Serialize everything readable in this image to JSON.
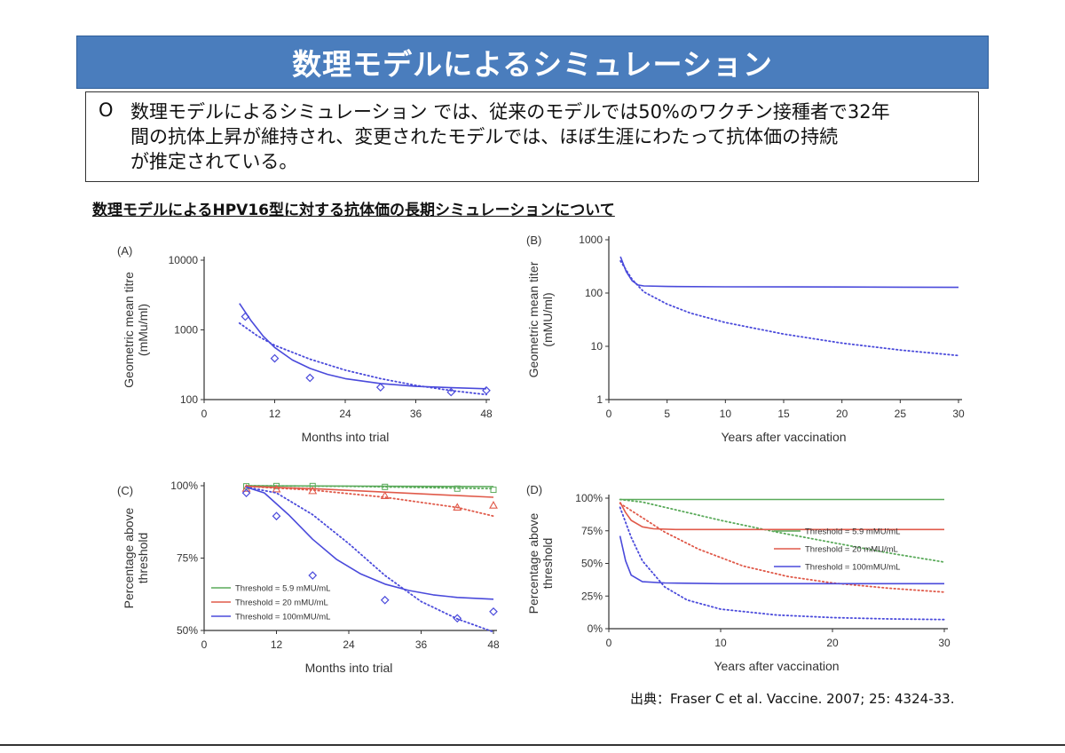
{
  "slide": {
    "title": "数理モデルによるシミュレーション",
    "bullet": "O",
    "summary_lines": [
      "数理モデルによるシミュレーション では、従来のモデルでは50%のワクチン接種者で32年",
      "間の抗体上昇が維持され、変更されたモデルでは、ほぼ生涯にわたって抗体価の持続",
      "が推定されている。"
    ],
    "subtitle": "数理モデルによるHPV16型に対する抗体価の長期シミュレーションについて",
    "citation": "出典：Fraser C et al. Vaccine. 2007; 25: 4324-33."
  },
  "colors": {
    "title_bg": "#4a7dbd",
    "green": "#5aaa5a",
    "red": "#e05a4a",
    "blue": "#4a4adb"
  },
  "chart_data": [
    {
      "id": "A",
      "panel_label": "(A)",
      "type": "line",
      "xlabel": "Months into trial",
      "ylabel": [
        "Geometric mean titre",
        "(mMu/ml)"
      ],
      "xlim": [
        0,
        48
      ],
      "ylim": [
        100,
        10000
      ],
      "yscale": "log",
      "xticks": [
        0,
        12,
        24,
        36,
        48
      ],
      "yticks": [
        100,
        1000,
        10000
      ],
      "ytick_labels": [
        "100",
        "1000",
        "10000"
      ],
      "series": [
        {
          "color": "blue",
          "style": "solid",
          "x": [
            6,
            8,
            10,
            12,
            15,
            18,
            21,
            24,
            30,
            36,
            42,
            48
          ],
          "y": [
            2400,
            1350,
            820,
            560,
            370,
            280,
            230,
            200,
            170,
            155,
            148,
            143
          ]
        },
        {
          "color": "blue",
          "style": "dotted",
          "x": [
            6,
            9,
            12,
            18,
            24,
            30,
            36,
            42,
            48
          ],
          "y": [
            1250,
            830,
            600,
            380,
            265,
            200,
            160,
            135,
            118
          ]
        },
        {
          "color": "blue",
          "style": "markers",
          "x": [
            7,
            12,
            18,
            30,
            42,
            48
          ],
          "y": [
            1550,
            390,
            205,
            150,
            128,
            135
          ]
        }
      ]
    },
    {
      "id": "B",
      "panel_label": "(B)",
      "type": "line",
      "xlabel": "Years after vaccination",
      "ylabel": [
        "Geometric mean titer",
        "(mMU/ml)"
      ],
      "xlim": [
        0,
        30
      ],
      "ylim": [
        1,
        1000
      ],
      "yscale": "log",
      "xticks": [
        0,
        5,
        10,
        15,
        20,
        25,
        30
      ],
      "yticks": [
        1,
        10,
        100,
        1000
      ],
      "ytick_labels": [
        "1",
        "10",
        "100",
        "1000"
      ],
      "series": [
        {
          "color": "blue",
          "style": "solid",
          "x": [
            1,
            1.5,
            2,
            2.5,
            3,
            5,
            10,
            20,
            30
          ],
          "y": [
            480,
            250,
            170,
            142,
            136,
            133,
            131,
            130,
            128
          ]
        },
        {
          "color": "blue",
          "style": "dotted",
          "x": [
            1,
            2,
            3,
            5,
            7,
            10,
            15,
            20,
            25,
            30
          ],
          "y": [
            400,
            180,
            105,
            62,
            42,
            28,
            17,
            11.5,
            8.5,
            6.7
          ]
        }
      ]
    },
    {
      "id": "C",
      "panel_label": "(C)",
      "type": "line",
      "xlabel": "Months into trial",
      "ylabel": [
        "Percentage above",
        "threshold"
      ],
      "xlim": [
        0,
        48
      ],
      "ylim": [
        50,
        100
      ],
      "xticks": [
        0,
        12,
        24,
        36,
        48
      ],
      "yticks": [
        50,
        75,
        100
      ],
      "ytick_labels": [
        "50%",
        "75%",
        "100%"
      ],
      "legend": [
        {
          "label": "Threshold = 5.9 mMU/mL",
          "color": "green"
        },
        {
          "label": "Threshold = 20 mMU/mL",
          "color": "red"
        },
        {
          "label": "Threshold = 100mMU/mL",
          "color": "blue"
        }
      ],
      "series": [
        {
          "color": "green",
          "style": "solid",
          "x": [
            7,
            48
          ],
          "y": [
            100,
            99.7
          ]
        },
        {
          "color": "green",
          "style": "dotted",
          "x": [
            7,
            24,
            48
          ],
          "y": [
            100,
            99.8,
            99
          ]
        },
        {
          "color": "green",
          "style": "markers",
          "x": [
            7,
            12,
            18,
            30,
            42,
            48
          ],
          "y": [
            99.8,
            99.9,
            99.9,
            99.6,
            99.0,
            98.6
          ]
        },
        {
          "color": "red",
          "style": "solid",
          "x": [
            7,
            18,
            30,
            42,
            48
          ],
          "y": [
            99.8,
            99.0,
            97.8,
            96.6,
            96.0
          ]
        },
        {
          "color": "red",
          "style": "dotted",
          "x": [
            7,
            18,
            30,
            42,
            48
          ],
          "y": [
            99.8,
            98.5,
            96.0,
            92.5,
            89.5
          ]
        },
        {
          "color": "red",
          "style": "markers",
          "x": [
            7,
            12,
            18,
            30,
            42,
            48
          ],
          "y": [
            99.0,
            98.8,
            98.2,
            96.5,
            92.5,
            93.2
          ]
        },
        {
          "color": "blue",
          "style": "solid",
          "x": [
            7,
            10,
            14,
            18,
            22,
            26,
            30,
            34,
            38,
            42,
            48
          ],
          "y": [
            99.5,
            97.5,
            90.0,
            81.5,
            74.5,
            69.5,
            66.0,
            63.8,
            62.3,
            61.4,
            60.8
          ]
        },
        {
          "color": "blue",
          "style": "dotted",
          "x": [
            7,
            12,
            18,
            24,
            30,
            36,
            42,
            48
          ],
          "y": [
            99.5,
            97.5,
            90.0,
            80.0,
            69.0,
            60.0,
            54.0,
            49.5
          ]
        },
        {
          "color": "blue",
          "style": "markers",
          "x": [
            7,
            12,
            18,
            30,
            42,
            48
          ],
          "y": [
            97.5,
            89.5,
            69.0,
            60.5,
            54.2,
            56.5
          ]
        }
      ]
    },
    {
      "id": "D",
      "panel_label": "(D)",
      "type": "line",
      "xlabel": "Years after vaccination",
      "ylabel": [
        "Percentage above",
        "threshold"
      ],
      "xlim": [
        0,
        30
      ],
      "ylim": [
        0,
        100
      ],
      "xticks": [
        0,
        10,
        20,
        30
      ],
      "yticks": [
        0,
        25,
        50,
        75,
        100
      ],
      "ytick_labels": [
        "0%",
        "25%",
        "50%",
        "75%",
        "100%"
      ],
      "legend": [
        {
          "label": "Threshold = 5.9 mMU/mL",
          "color": "green"
        },
        {
          "label": "Threshold = 20 mMU/mL",
          "color": "red"
        },
        {
          "label": "Threshold = 100mMU/mL",
          "color": "blue"
        }
      ],
      "series": [
        {
          "color": "green",
          "style": "solid",
          "x": [
            1,
            30
          ],
          "y": [
            99,
            99
          ]
        },
        {
          "color": "green",
          "style": "dotted",
          "x": [
            1,
            3,
            6,
            10,
            15,
            20,
            25,
            30
          ],
          "y": [
            99,
            97,
            91,
            83,
            74,
            66,
            58,
            51
          ]
        },
        {
          "color": "red",
          "style": "solid",
          "x": [
            1,
            1.5,
            2,
            3,
            4,
            6,
            10,
            30
          ],
          "y": [
            97,
            89,
            83,
            78,
            76.5,
            76,
            76,
            76
          ]
        },
        {
          "color": "red",
          "style": "dotted",
          "x": [
            1,
            3,
            5,
            8,
            12,
            16,
            20,
            25,
            30
          ],
          "y": [
            96,
            85,
            74,
            61,
            48,
            40,
            35,
            31,
            28
          ]
        },
        {
          "color": "blue",
          "style": "solid",
          "x": [
            1,
            1.5,
            2,
            3,
            5,
            10,
            30
          ],
          "y": [
            71,
            52,
            41,
            36,
            35,
            34.5,
            34.5
          ]
        },
        {
          "color": "blue",
          "style": "dotted",
          "x": [
            1,
            2,
            3,
            5,
            7,
            10,
            15,
            20,
            25,
            30
          ],
          "y": [
            93,
            70,
            52,
            32,
            22,
            15,
            10.5,
            8.5,
            7.5,
            7
          ]
        }
      ]
    }
  ]
}
